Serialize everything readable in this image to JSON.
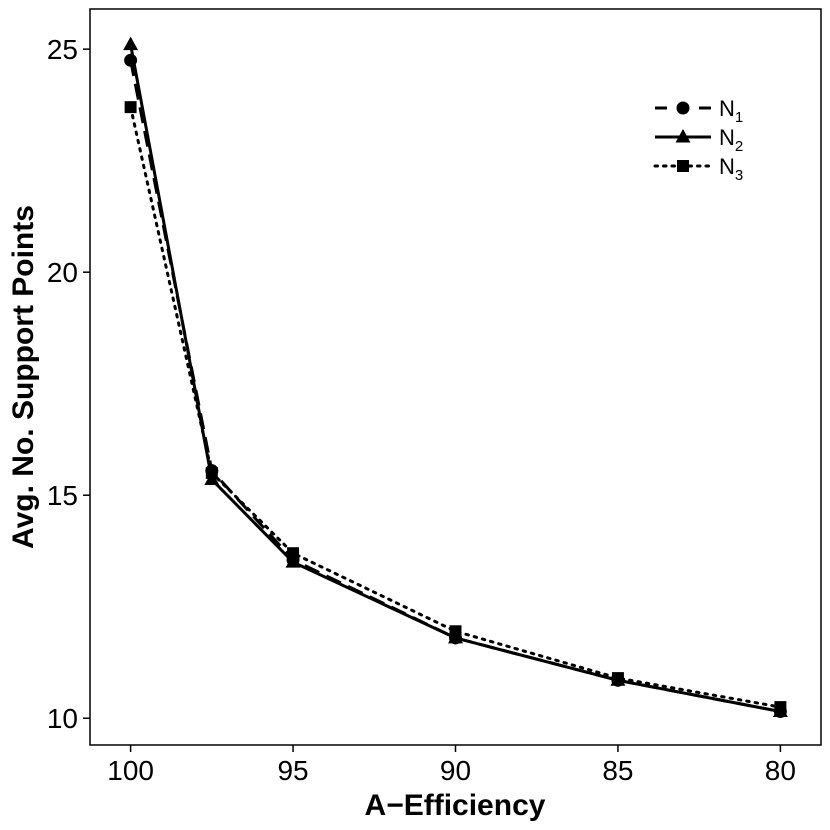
{
  "chart_data": {
    "type": "line",
    "title": "",
    "xlabel": "A−Efficiency",
    "ylabel": "Avg. No. Support Points",
    "x": [
      100,
      97.5,
      95,
      90,
      85,
      80
    ],
    "xlim": [
      101.25,
      78.75
    ],
    "x_reversed": true,
    "ylim": [
      9.4,
      25.9
    ],
    "xticks": [
      100,
      95,
      90,
      85,
      80
    ],
    "xtick_labels": [
      "100",
      "95",
      "90",
      "85",
      "80"
    ],
    "yticks": [
      10,
      15,
      20,
      25
    ],
    "ytick_labels": [
      "10",
      "15",
      "20",
      "25"
    ],
    "grid": false,
    "legend_position": "top-right",
    "series": [
      {
        "name": "N",
        "subscript": "1",
        "line_style": "dashed",
        "marker": "circle",
        "values": [
          24.75,
          15.55,
          13.55,
          11.8,
          10.85,
          10.15
        ]
      },
      {
        "name": "N",
        "subscript": "2",
        "line_style": "solid",
        "marker": "triangle",
        "values": [
          25.1,
          15.35,
          13.5,
          11.8,
          10.85,
          10.15
        ]
      },
      {
        "name": "N",
        "subscript": "3",
        "line_style": "dotted",
        "marker": "square",
        "values": [
          23.7,
          15.5,
          13.7,
          11.95,
          10.9,
          10.25
        ]
      }
    ]
  }
}
